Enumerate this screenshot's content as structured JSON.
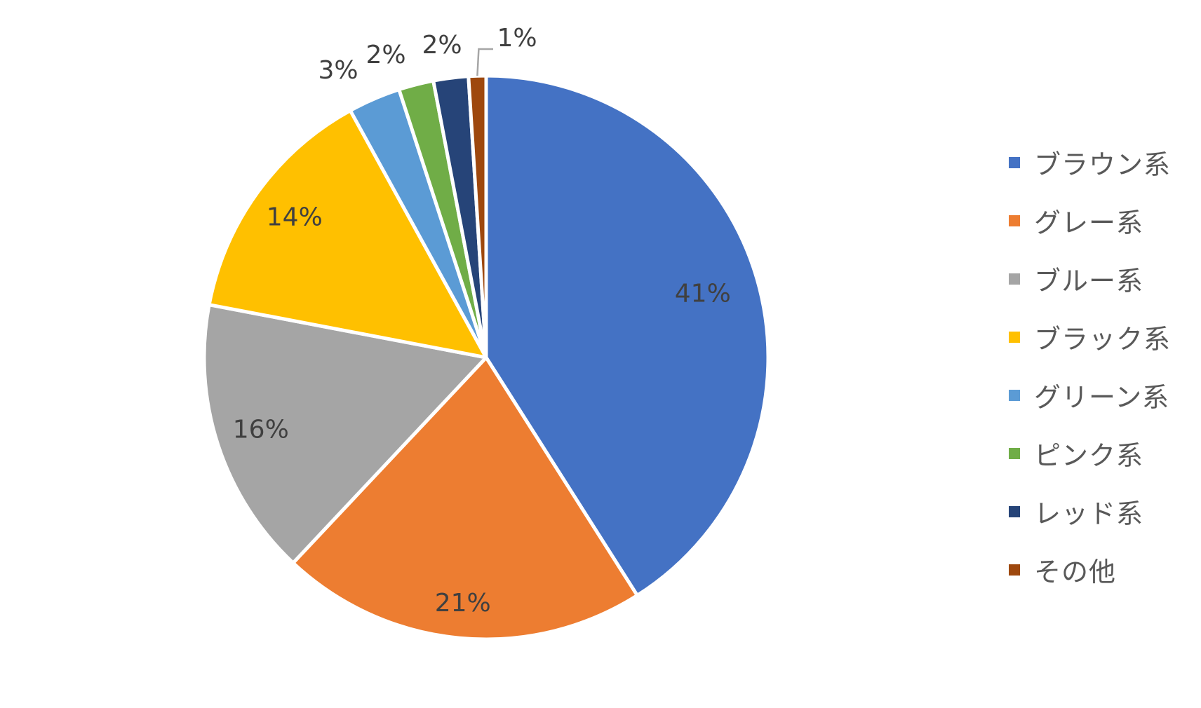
{
  "chart_data": {
    "type": "pie",
    "title": "",
    "categories": [
      "ブラウン系",
      "グレー系",
      "ブルー系",
      "ブラック系",
      "グリーン系",
      "ピンク系",
      "レッド系",
      "その他"
    ],
    "values": [
      41,
      21,
      16,
      14,
      3,
      2,
      2,
      1
    ],
    "labels": [
      "41%",
      "21%",
      "16%",
      "14%",
      "3%",
      "2%",
      "2%",
      "1%"
    ],
    "colors": [
      "#4472C4",
      "#ED7D31",
      "#A5A5A5",
      "#FFC000",
      "#5B9BD5",
      "#70AD47",
      "#264478",
      "#9E480E"
    ],
    "legend_position": "right",
    "start_angle": "12 o'clock",
    "direction": "clockwise"
  }
}
